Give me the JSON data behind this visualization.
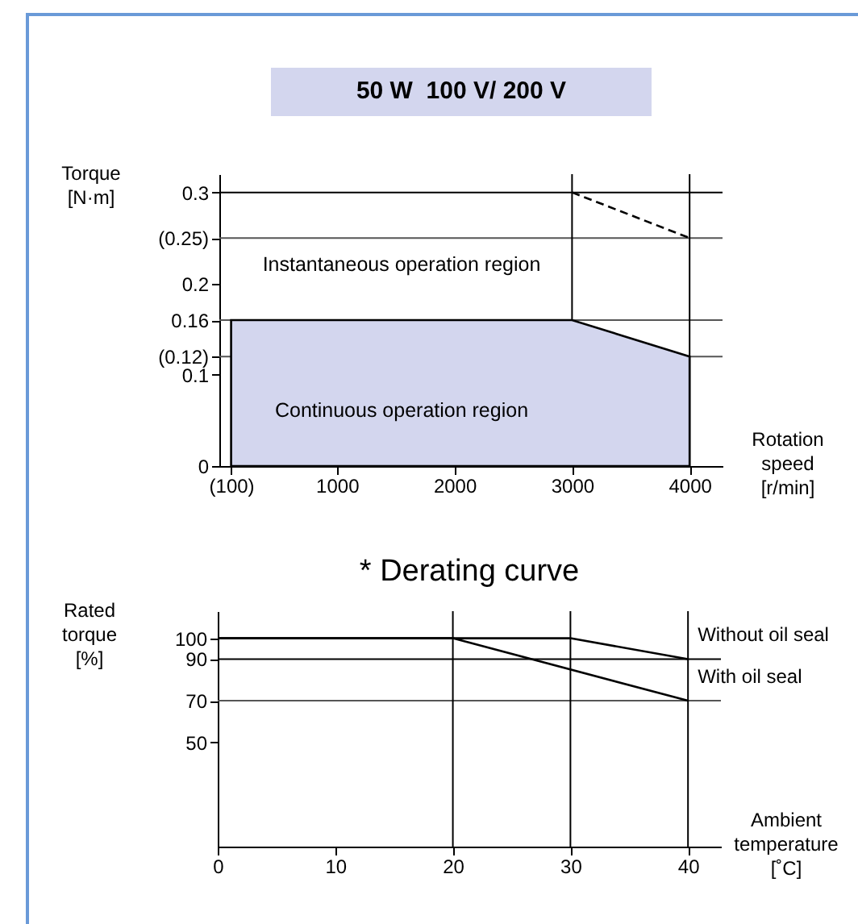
{
  "chart_data": [
    {
      "type": "area",
      "title": "50 W  100 V/ 200 V",
      "xlabel": "Rotation speed [r/min]",
      "ylabel": "Torque [N·m]",
      "series": [
        {
          "color": "#d3d6ee",
          "x": [
            100,
            3000,
            4000
          ],
          "values": [
            0.16,
            0.16,
            0.12
          ]
        },
        {
          "type": "line",
          "color": "#000000",
          "line_style": "dashed",
          "x": [
            3000,
            4000
          ],
          "values": [
            0.3,
            0.25
          ]
        }
      ],
      "xlim": [
        0,
        4280
      ],
      "ylim": [
        0,
        0.32
      ],
      "xticks": [
        {
          "value": 100,
          "label": "(100)"
        },
        1000,
        2000,
        3000,
        4000
      ],
      "yticks": [
        0,
        0.1,
        {
          "value": 0.12,
          "label": "(0.12)"
        },
        0.16,
        0.2,
        {
          "value": 0.25,
          "label": "(0.25)"
        },
        0.3
      ],
      "ref_lines": [
        {
          "axis": "y",
          "value": 0.3,
          "color": "#000000"
        },
        {
          "axis": "y",
          "value": 0.25,
          "color": "#555555"
        },
        {
          "axis": "y",
          "value": 0.16,
          "color": "#555555"
        },
        {
          "axis": "y",
          "value": 0.12,
          "color": "#555555"
        },
        {
          "axis": "x",
          "value": 3000,
          "color": "#000000"
        },
        {
          "axis": "x",
          "value": 4000,
          "color": "#000000"
        }
      ],
      "annotations": [
        "Instantaneous operation region",
        "Continuous operation region"
      ]
    },
    {
      "type": "line",
      "title": "* Derating curve",
      "xlabel": "Ambient temperature [˚C]",
      "ylabel": "Rated torque [%]",
      "series": [
        {
          "name": "Without oil seal",
          "color": "#000000",
          "x": [
            0,
            30,
            40
          ],
          "values": [
            100,
            100,
            90
          ]
        },
        {
          "name": "With oil seal",
          "color": "#000000",
          "x": [
            0,
            20,
            40
          ],
          "values": [
            100,
            100,
            70
          ]
        }
      ],
      "xlim": [
        0,
        42.8
      ],
      "ylim": [
        0,
        113
      ],
      "xticks": [
        0,
        10,
        20,
        30,
        40
      ],
      "yticks": [
        50,
        70,
        90,
        100
      ],
      "ref_lines": [
        {
          "axis": "y",
          "value": 90,
          "color": "#000000"
        },
        {
          "axis": "y",
          "value": 70,
          "color": "#555555"
        },
        {
          "axis": "x",
          "value": 20,
          "color": "#000000"
        },
        {
          "axis": "x",
          "value": 30,
          "color": "#000000"
        },
        {
          "axis": "x",
          "value": 40,
          "color": "#000000"
        }
      ]
    }
  ]
}
